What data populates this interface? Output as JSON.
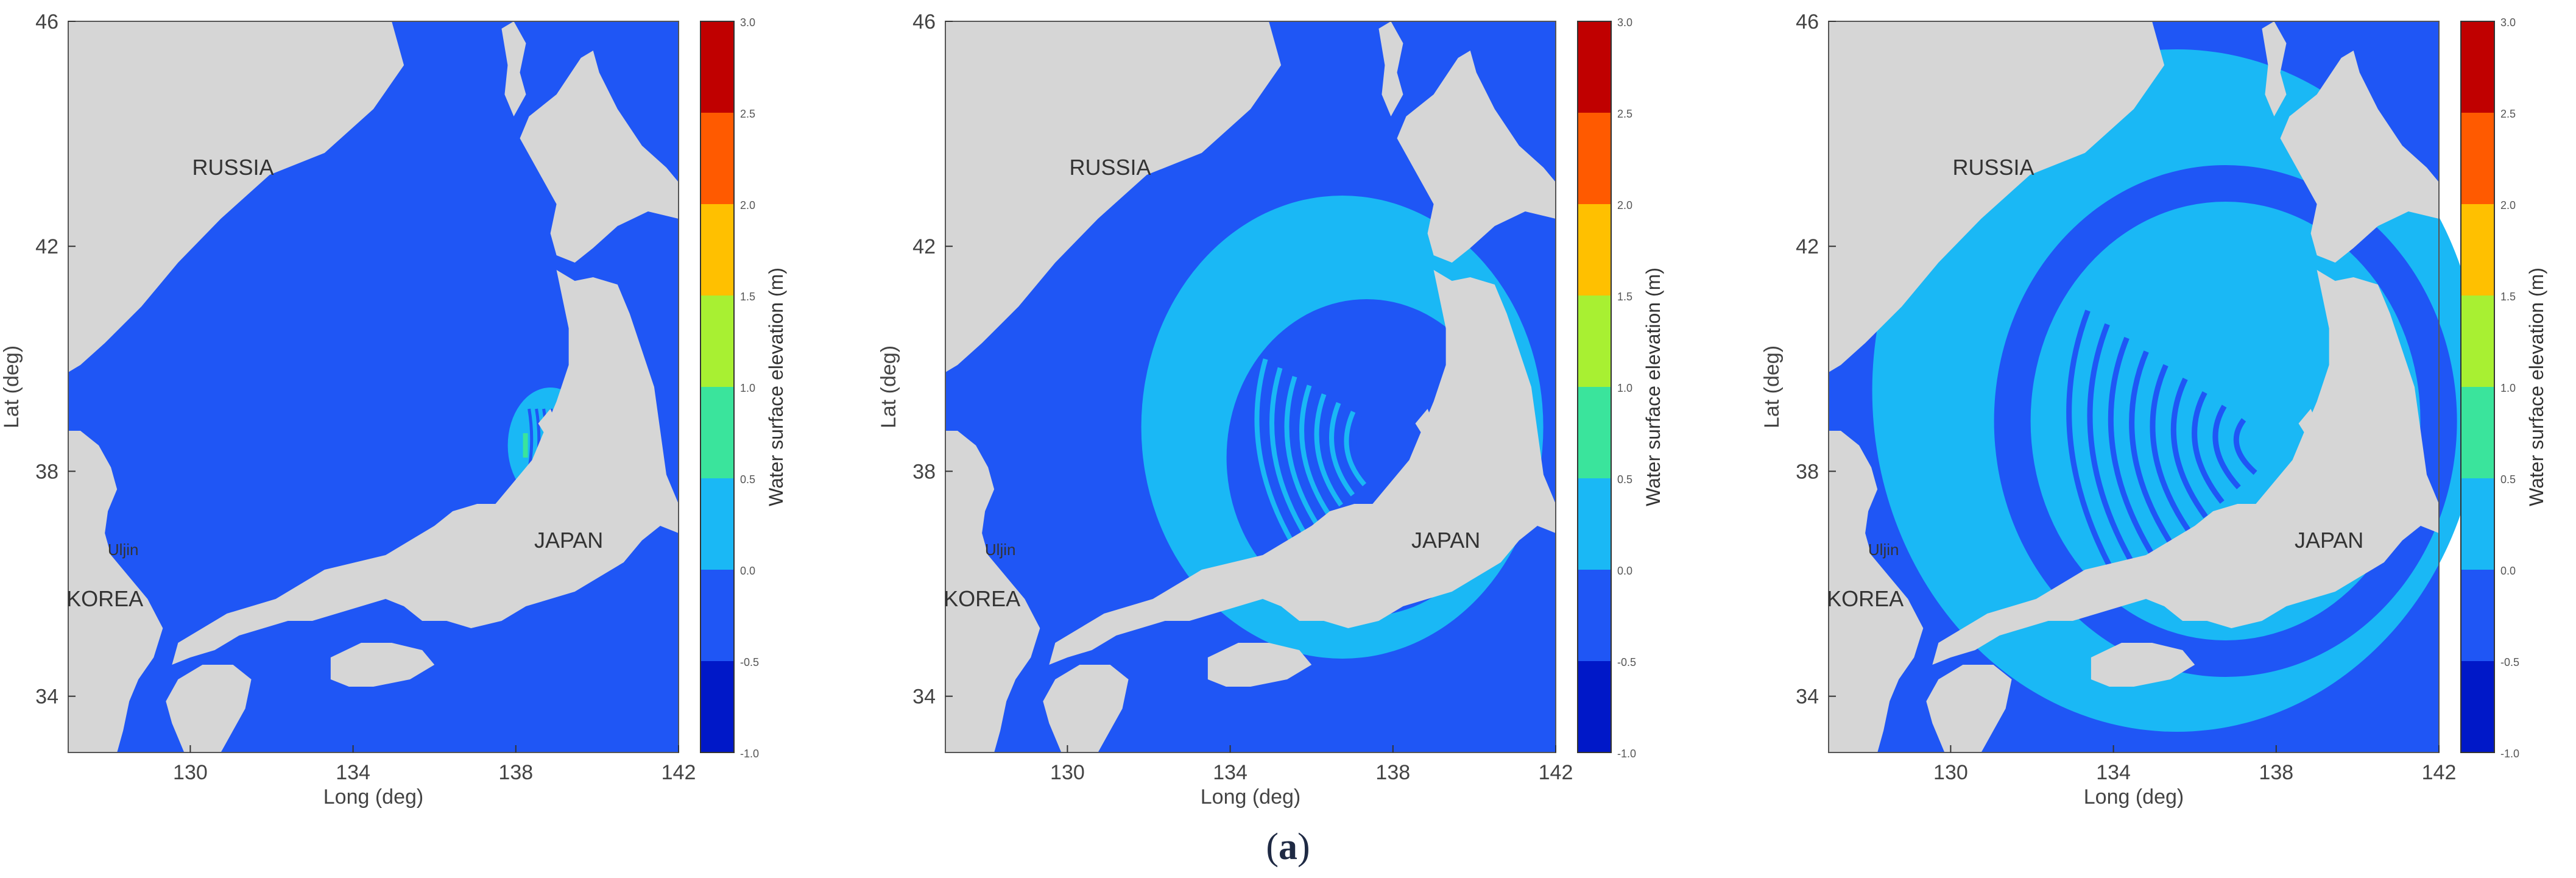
{
  "figure": {
    "caption_open": "(",
    "caption_letter": "a",
    "caption_close": ")"
  },
  "map": {
    "ocean_color": "#1f56f5",
    "land_color": "#d6d6d6",
    "xlabel": "Long (deg)",
    "ylabel": "Lat (deg)",
    "xticks": [
      "130",
      "134",
      "138",
      "142"
    ],
    "yticks": [
      "46",
      "42",
      "38",
      "34"
    ],
    "lon_range": [
      127,
      142
    ],
    "lat_range": [
      33,
      46
    ],
    "place_labels": {
      "russia": "RUSSIA",
      "japan": "JAPAN",
      "korea": "KOREA",
      "uljin": "Uljin"
    }
  },
  "colorbar": {
    "label": "Water surface elevation (m)",
    "ticks": [
      "3.0",
      "2.5",
      "2.0",
      "1.5",
      "1.0",
      "0.5",
      "0.0",
      "-0.5",
      "-1.0"
    ],
    "colors": [
      "#c00000",
      "#ff5a00",
      "#ffc000",
      "#a8f032",
      "#3ae49c",
      "#1ab8f5",
      "#1f56f5",
      "#0018c8"
    ]
  },
  "panels": [
    {
      "name": "t1",
      "anomaly": "small"
    },
    {
      "name": "t2",
      "anomaly": "medium"
    },
    {
      "name": "t3",
      "anomaly": "large"
    }
  ]
}
